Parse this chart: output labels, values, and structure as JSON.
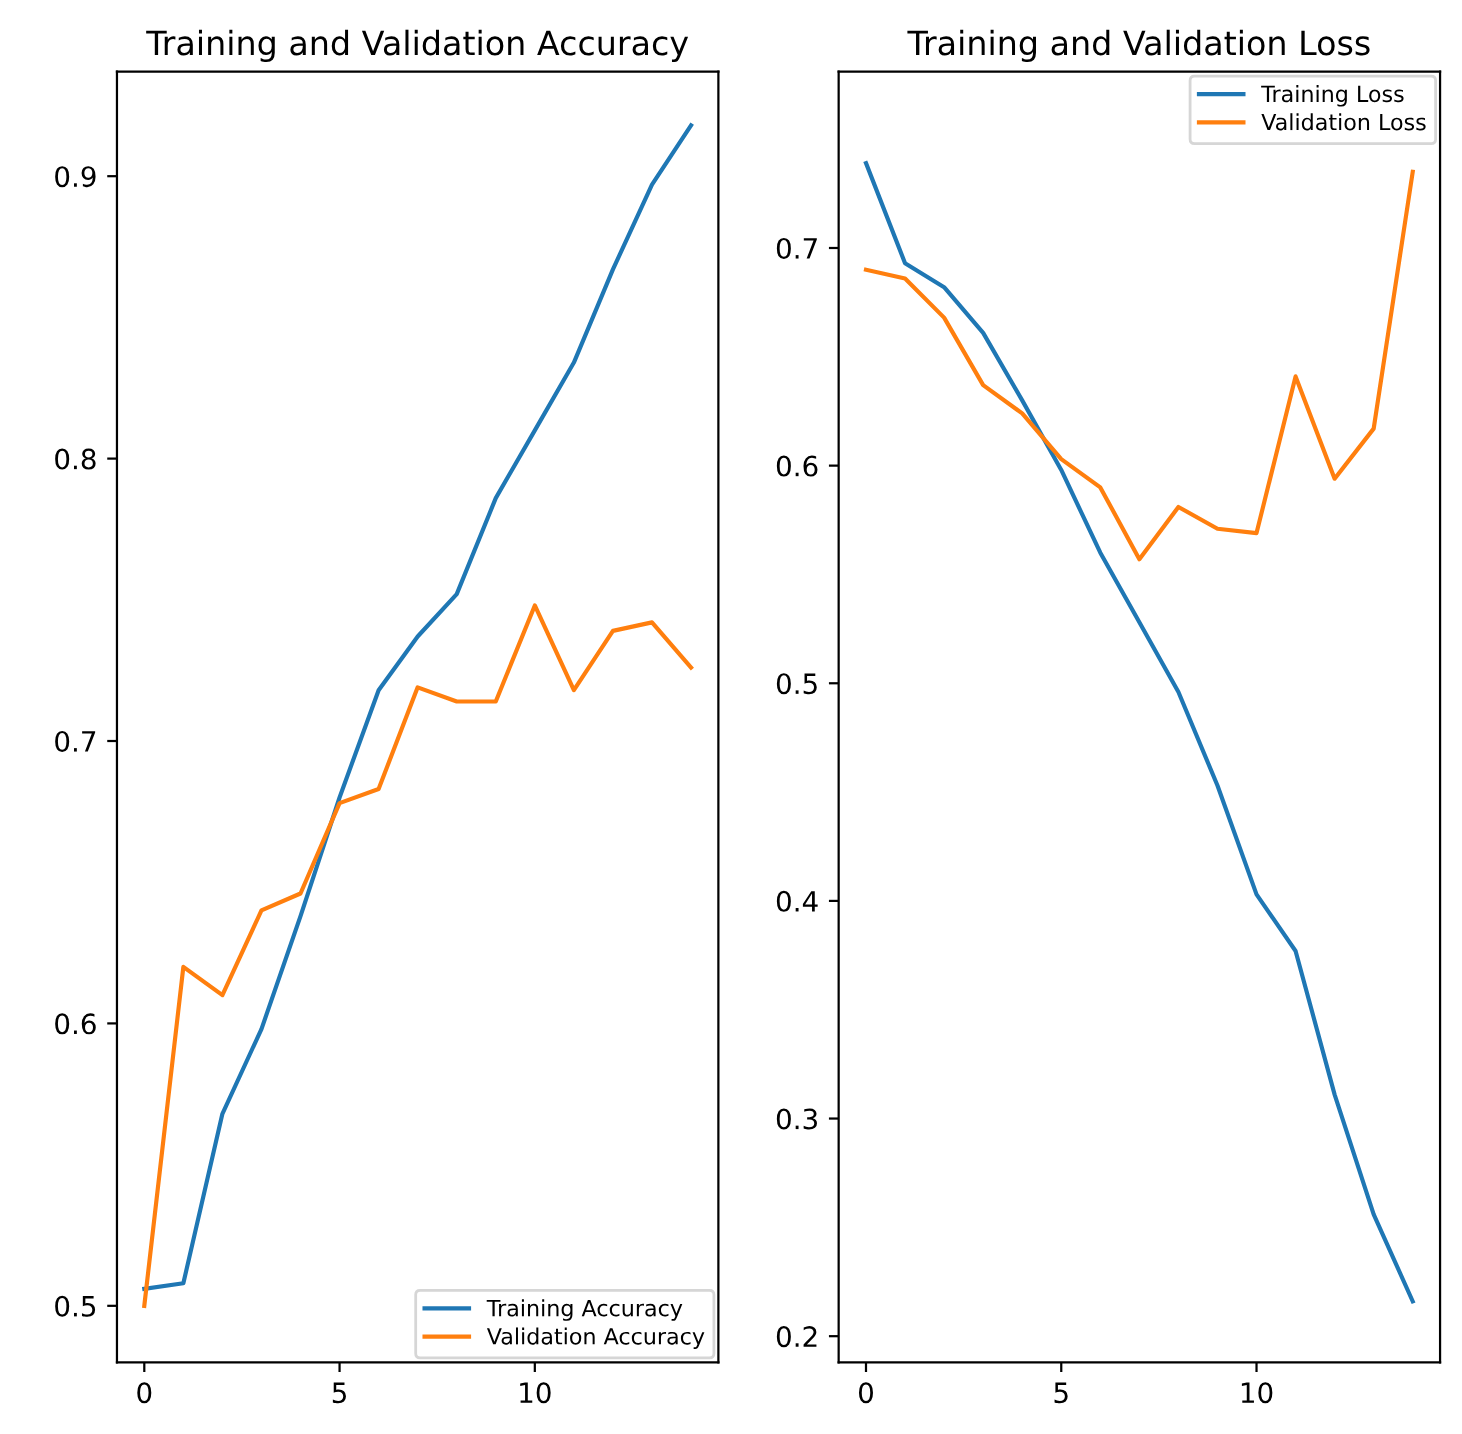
{
  "chart_data": [
    {
      "type": "line",
      "title": "Training and Validation Accuracy",
      "x": [
        0,
        1,
        2,
        3,
        4,
        5,
        6,
        7,
        8,
        9,
        10,
        11,
        12,
        13,
        14
      ],
      "series": [
        {
          "name": "Training Accuracy",
          "color": "#1f77b4",
          "values": [
            0.506,
            0.508,
            0.568,
            0.598,
            0.638,
            0.68,
            0.718,
            0.737,
            0.752,
            0.786,
            0.81,
            0.834,
            0.867,
            0.897,
            0.918
          ]
        },
        {
          "name": "Validation Accuracy",
          "color": "#ff7f0e",
          "values": [
            0.5,
            0.62,
            0.61,
            0.64,
            0.646,
            0.678,
            0.683,
            0.719,
            0.714,
            0.714,
            0.748,
            0.718,
            0.739,
            0.742,
            0.726
          ]
        }
      ],
      "xlim": [
        -0.7,
        14.7
      ],
      "xticks": [
        0,
        5,
        10
      ],
      "ylim": [
        0.48,
        0.937
      ],
      "yticks": [
        0.5,
        0.6,
        0.7,
        0.8,
        0.9
      ],
      "legend": "lower right",
      "grid": false
    },
    {
      "type": "line",
      "title": "Training and Validation Loss",
      "x": [
        0,
        1,
        2,
        3,
        4,
        5,
        6,
        7,
        8,
        9,
        10,
        11,
        12,
        13,
        14
      ],
      "series": [
        {
          "name": "Training Loss",
          "color": "#1f77b4",
          "values": [
            0.739,
            0.693,
            0.682,
            0.661,
            0.63,
            0.598,
            0.56,
            0.528,
            0.496,
            0.453,
            0.403,
            0.377,
            0.311,
            0.256,
            0.216
          ]
        },
        {
          "name": "Validation Loss",
          "color": "#ff7f0e",
          "values": [
            0.69,
            0.686,
            0.668,
            0.637,
            0.624,
            0.603,
            0.59,
            0.557,
            0.581,
            0.571,
            0.569,
            0.641,
            0.594,
            0.617,
            0.735
          ]
        }
      ],
      "xlim": [
        -0.7,
        14.7
      ],
      "xticks": [
        0,
        5,
        10
      ],
      "ylim": [
        0.188,
        0.781
      ],
      "yticks": [
        0.2,
        0.3,
        0.4,
        0.5,
        0.6,
        0.7
      ],
      "legend": "upper right",
      "grid": false
    }
  ]
}
